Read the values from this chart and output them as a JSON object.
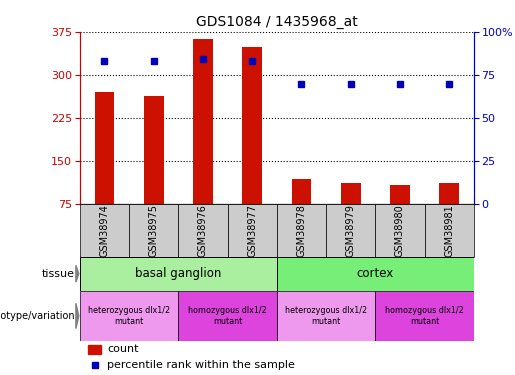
{
  "title": "GDS1084 / 1435968_at",
  "samples": [
    "GSM38974",
    "GSM38975",
    "GSM38976",
    "GSM38977",
    "GSM38978",
    "GSM38979",
    "GSM38980",
    "GSM38981"
  ],
  "counts": [
    270,
    263,
    362,
    348,
    120,
    112,
    108,
    113
  ],
  "percentile_ranks": [
    83,
    83,
    84,
    83,
    70,
    70,
    70,
    70
  ],
  "ylim_left": [
    75,
    375
  ],
  "ylim_right": [
    0,
    100
  ],
  "yticks_left": [
    75,
    150,
    225,
    300,
    375
  ],
  "yticks_right": [
    0,
    25,
    50,
    75,
    100
  ],
  "bar_color": "#CC1100",
  "dot_color": "#0000BB",
  "bar_width": 0.4,
  "tissue_bg_color": "#AAEEA0",
  "tissue_cortex_color": "#77EE77",
  "geno_hetero_color": "#EE99EE",
  "geno_homo_color": "#DD44DD",
  "sample_bg_color": "#CCCCCC",
  "ylabel_left_color": "#CC0000",
  "ylabel_right_color": "#0000CC",
  "legend_count_color": "#CC1100",
  "legend_dot_color": "#0000BB"
}
